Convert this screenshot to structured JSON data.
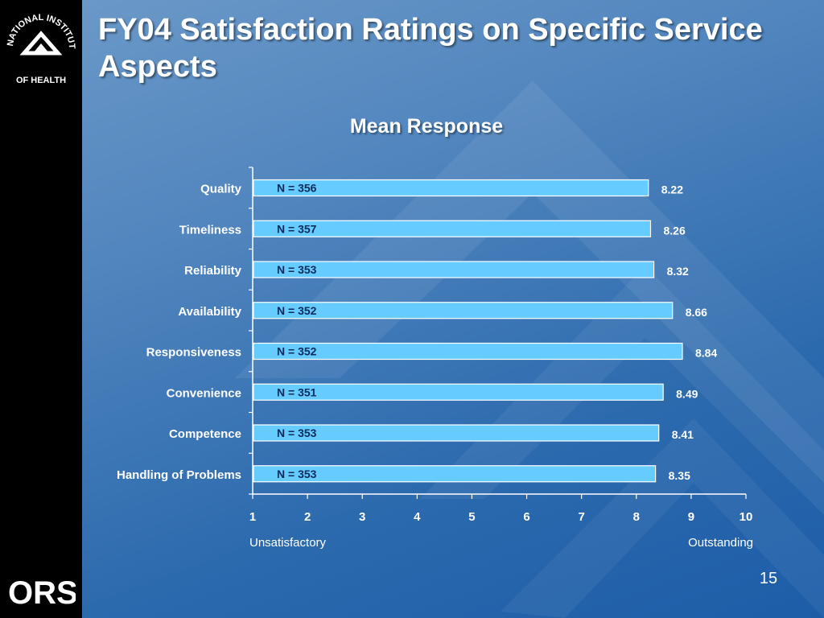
{
  "slide": {
    "title": "FY04 Satisfaction Ratings on Specific Service Aspects",
    "page_number": "15",
    "sidebar_logo": "NATIONAL INSTITUTES OF HEALTH",
    "footer_logo": "ORS"
  },
  "colors": {
    "bar_fill": "#66ccff",
    "bar_stroke": "#ffffff",
    "text_dark": "#0b2a5a",
    "axis": "#ffffff"
  },
  "chart_data": {
    "type": "bar",
    "orientation": "horizontal",
    "title": "Mean Response",
    "categories": [
      "Quality",
      "Timeliness",
      "Reliability",
      "Availability",
      "Responsiveness",
      "Convenience",
      "Competence",
      "Handling of Problems"
    ],
    "values": [
      8.22,
      8.26,
      8.32,
      8.66,
      8.84,
      8.49,
      8.41,
      8.35
    ],
    "value_labels": [
      "8.22",
      "8.26",
      "8.32",
      "8.66",
      "8.84",
      "8.49",
      "8.41",
      "8.35"
    ],
    "n_labels": [
      "N = 356",
      "N = 357",
      "N = 353",
      "N = 352",
      "N = 352",
      "N = 351",
      "N = 353",
      "N = 353"
    ],
    "xlim": [
      1,
      10
    ],
    "xticks": [
      "1",
      "2",
      "3",
      "4",
      "5",
      "6",
      "7",
      "8",
      "9",
      "10"
    ],
    "xlabel_left": "Unsatisfactory",
    "xlabel_right": "Outstanding",
    "grid": false,
    "legend": "none"
  }
}
